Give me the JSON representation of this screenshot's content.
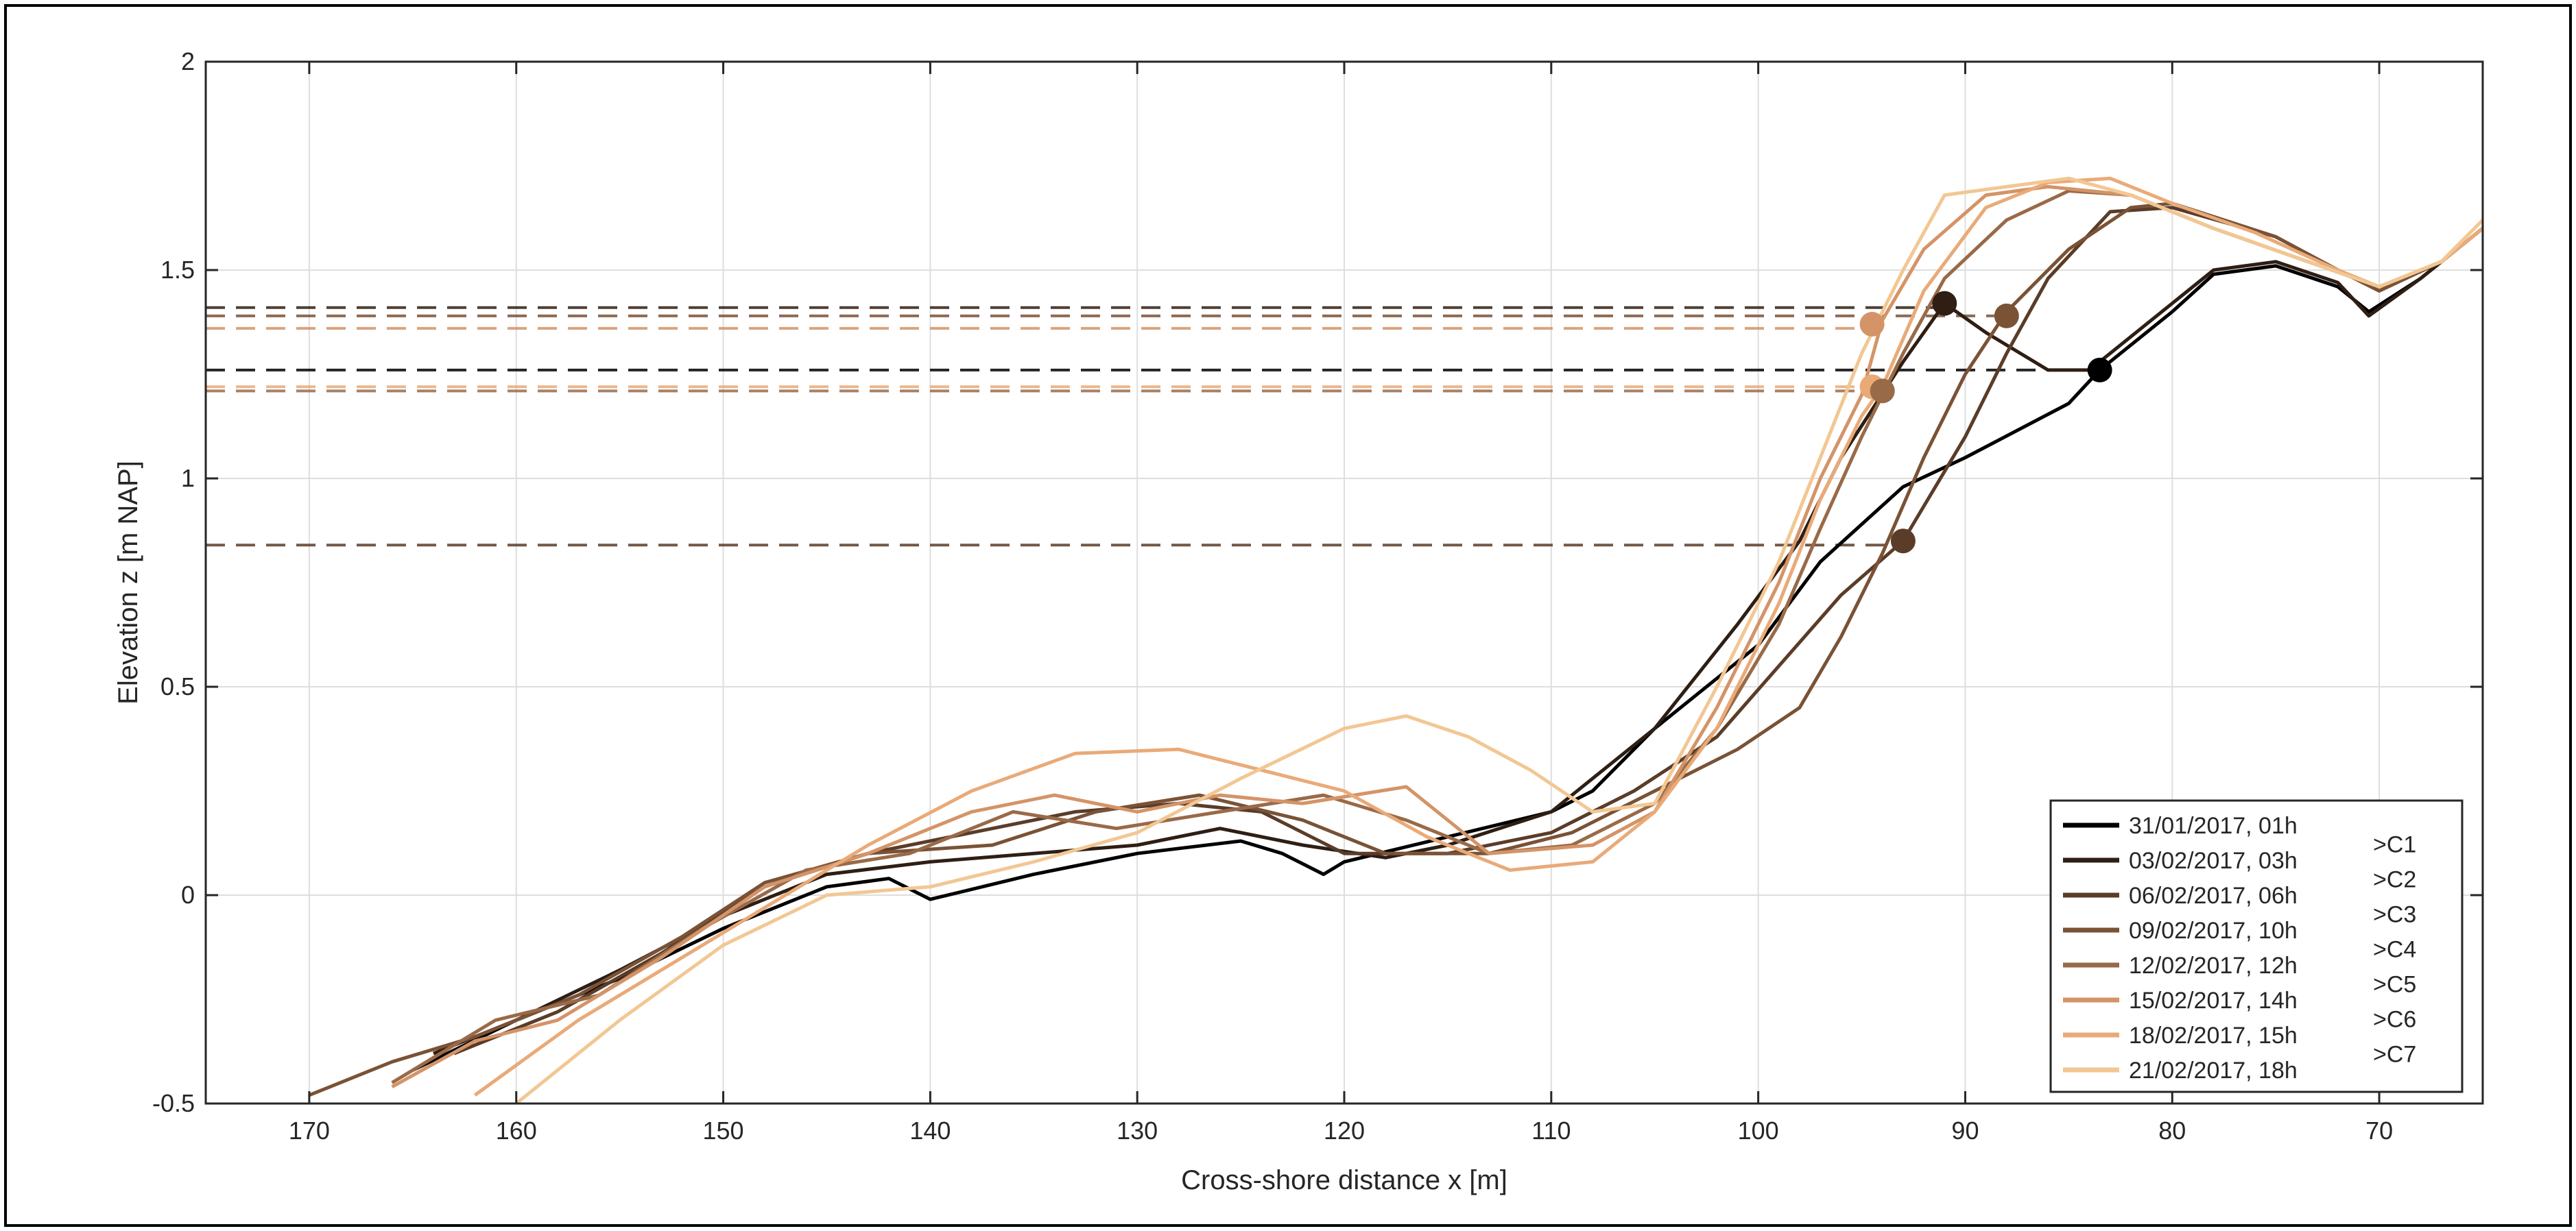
{
  "chart_data": {
    "type": "line",
    "title": "",
    "xlabel": "Cross-shore distance x [m]",
    "ylabel": "Elevation z [m NAP]",
    "xlim": [
      175,
      65
    ],
    "ylim": [
      -0.5,
      2
    ],
    "x_reversed": true,
    "grid": true,
    "legend_position": "bottom-right",
    "x_ticks": [
      170,
      160,
      150,
      140,
      130,
      120,
      110,
      100,
      90,
      80,
      70
    ],
    "y_ticks": [
      -0.5,
      0,
      0.5,
      1,
      1.5,
      2
    ],
    "y_tick_labels": [
      "-0.5",
      "0",
      "0.5",
      "1",
      "1.5",
      "2"
    ],
    "series": [
      {
        "name": "31/01/2017, 01h",
        "color": "#000000",
        "points": [
          [
            165,
            -0.42
          ],
          [
            160,
            -0.3
          ],
          [
            155,
            -0.2
          ],
          [
            150,
            -0.08
          ],
          [
            145,
            0.02
          ],
          [
            142,
            0.04
          ],
          [
            140,
            -0.01
          ],
          [
            135,
            0.05
          ],
          [
            130,
            0.1
          ],
          [
            125,
            0.13
          ],
          [
            123,
            0.1
          ],
          [
            121,
            0.05
          ],
          [
            120,
            0.08
          ],
          [
            115,
            0.14
          ],
          [
            110,
            0.2
          ],
          [
            108,
            0.25
          ],
          [
            105,
            0.4
          ],
          [
            100,
            0.6
          ],
          [
            97,
            0.8
          ],
          [
            93,
            0.98
          ],
          [
            90,
            1.05
          ],
          [
            85,
            1.18
          ],
          [
            83.5,
            1.26
          ],
          [
            80,
            1.4
          ],
          [
            78,
            1.49
          ],
          [
            75,
            1.51
          ],
          [
            72,
            1.46
          ],
          [
            70.5,
            1.4
          ],
          [
            68,
            1.48
          ],
          [
            65,
            1.6
          ]
        ]
      },
      {
        "name": "03/02/2017, 03h",
        "color": "#2e1e14",
        "points": [
          [
            164,
            -0.38
          ],
          [
            160,
            -0.3
          ],
          [
            155,
            -0.18
          ],
          [
            150,
            -0.05
          ],
          [
            145,
            0.05
          ],
          [
            140,
            0.08
          ],
          [
            135,
            0.1
          ],
          [
            130,
            0.12
          ],
          [
            126,
            0.16
          ],
          [
            122,
            0.12
          ],
          [
            118,
            0.09
          ],
          [
            115,
            0.12
          ],
          [
            110,
            0.2
          ],
          [
            105,
            0.4
          ],
          [
            101,
            0.65
          ],
          [
            98,
            0.85
          ],
          [
            96,
            1.05
          ],
          [
            93,
            1.28
          ],
          [
            91,
            1.42
          ],
          [
            89,
            1.35
          ],
          [
            86,
            1.26
          ],
          [
            84,
            1.26
          ],
          [
            80,
            1.42
          ],
          [
            78,
            1.5
          ],
          [
            75,
            1.52
          ],
          [
            72,
            1.47
          ],
          [
            70.5,
            1.39
          ],
          [
            68,
            1.48
          ],
          [
            65,
            1.6
          ]
        ]
      },
      {
        "name": "06/02/2017, 06h",
        "color": "#5a3c28",
        "points": [
          [
            163,
            -0.38
          ],
          [
            158,
            -0.28
          ],
          [
            153,
            -0.14
          ],
          [
            148,
            0.02
          ],
          [
            143,
            0.1
          ],
          [
            138,
            0.15
          ],
          [
            133,
            0.2
          ],
          [
            128,
            0.22
          ],
          [
            124,
            0.2
          ],
          [
            120,
            0.1
          ],
          [
            115,
            0.1
          ],
          [
            110,
            0.15
          ],
          [
            106,
            0.25
          ],
          [
            102,
            0.38
          ],
          [
            99,
            0.55
          ],
          [
            96,
            0.72
          ],
          [
            93,
            0.85
          ],
          [
            90,
            1.1
          ],
          [
            88,
            1.3
          ],
          [
            86,
            1.48
          ],
          [
            83,
            1.64
          ],
          [
            80,
            1.65
          ],
          [
            75,
            1.58
          ],
          [
            72,
            1.5
          ],
          [
            70,
            1.45
          ],
          [
            67,
            1.52
          ],
          [
            65,
            1.6
          ]
        ]
      },
      {
        "name": "09/02/2017, 10h",
        "color": "#7a5236",
        "points": [
          [
            170,
            -0.48
          ],
          [
            166,
            -0.4
          ],
          [
            162,
            -0.34
          ],
          [
            157,
            -0.24
          ],
          [
            152,
            -0.1
          ],
          [
            148,
            0.03
          ],
          [
            143,
            0.1
          ],
          [
            137,
            0.12
          ],
          [
            132,
            0.2
          ],
          [
            127,
            0.24
          ],
          [
            122,
            0.18
          ],
          [
            118,
            0.1
          ],
          [
            113,
            0.1
          ],
          [
            109,
            0.15
          ],
          [
            105,
            0.25
          ],
          [
            101,
            0.35
          ],
          [
            98,
            0.45
          ],
          [
            96,
            0.62
          ],
          [
            94,
            0.82
          ],
          [
            92,
            1.05
          ],
          [
            90,
            1.25
          ],
          [
            88,
            1.4
          ],
          [
            85,
            1.55
          ],
          [
            82,
            1.65
          ],
          [
            80,
            1.66
          ],
          [
            75,
            1.58
          ],
          [
            72,
            1.5
          ],
          [
            70,
            1.45
          ],
          [
            67,
            1.52
          ],
          [
            65,
            1.6
          ]
        ]
      },
      {
        "name": "12/02/2017, 12h",
        "color": "#996a48",
        "points": [
          [
            166,
            -0.45
          ],
          [
            161,
            -0.3
          ],
          [
            156,
            -0.24
          ],
          [
            151,
            -0.08
          ],
          [
            146,
            0.06
          ],
          [
            141,
            0.1
          ],
          [
            136,
            0.2
          ],
          [
            131,
            0.16
          ],
          [
            126,
            0.2
          ],
          [
            121,
            0.24
          ],
          [
            117,
            0.18
          ],
          [
            113,
            0.1
          ],
          [
            109,
            0.12
          ],
          [
            105,
            0.22
          ],
          [
            102,
            0.4
          ],
          [
            99,
            0.65
          ],
          [
            97,
            0.88
          ],
          [
            95,
            1.1
          ],
          [
            93,
            1.3
          ],
          [
            91,
            1.48
          ],
          [
            88,
            1.62
          ],
          [
            85,
            1.69
          ],
          [
            82,
            1.68
          ],
          [
            78,
            1.6
          ],
          [
            74,
            1.53
          ],
          [
            70,
            1.46
          ],
          [
            67,
            1.52
          ],
          [
            65,
            1.6
          ]
        ]
      },
      {
        "name": "15/02/2017, 14h",
        "color": "#d49468",
        "points": [
          [
            166,
            -0.46
          ],
          [
            162,
            -0.35
          ],
          [
            158,
            -0.3
          ],
          [
            153,
            -0.15
          ],
          [
            148,
            0.02
          ],
          [
            143,
            0.1
          ],
          [
            138,
            0.2
          ],
          [
            134,
            0.24
          ],
          [
            130,
            0.2
          ],
          [
            126,
            0.24
          ],
          [
            122,
            0.22
          ],
          [
            117,
            0.26
          ],
          [
            113,
            0.1
          ],
          [
            108,
            0.12
          ],
          [
            105,
            0.2
          ],
          [
            102,
            0.45
          ],
          [
            99,
            0.75
          ],
          [
            97,
            1.0
          ],
          [
            95,
            1.2
          ],
          [
            94,
            1.38
          ],
          [
            92,
            1.55
          ],
          [
            89,
            1.68
          ],
          [
            86,
            1.7
          ],
          [
            82,
            1.68
          ],
          [
            78,
            1.6
          ],
          [
            74,
            1.53
          ],
          [
            70,
            1.46
          ],
          [
            67,
            1.52
          ],
          [
            65,
            1.6
          ]
        ]
      },
      {
        "name": "18/02/2017, 15h",
        "color": "#e9aa78",
        "points": [
          [
            162,
            -0.48
          ],
          [
            157,
            -0.3
          ],
          [
            152,
            -0.15
          ],
          [
            147,
            0.0
          ],
          [
            143,
            0.12
          ],
          [
            138,
            0.25
          ],
          [
            133,
            0.34
          ],
          [
            128,
            0.35
          ],
          [
            124,
            0.3
          ],
          [
            120,
            0.25
          ],
          [
            116,
            0.14
          ],
          [
            112,
            0.06
          ],
          [
            108,
            0.08
          ],
          [
            105,
            0.2
          ],
          [
            102,
            0.4
          ],
          [
            99,
            0.7
          ],
          [
            97,
            0.95
          ],
          [
            95,
            1.15
          ],
          [
            94,
            1.22
          ],
          [
            92,
            1.45
          ],
          [
            89,
            1.65
          ],
          [
            86,
            1.71
          ],
          [
            83,
            1.72
          ],
          [
            80,
            1.66
          ],
          [
            76,
            1.59
          ],
          [
            72,
            1.5
          ],
          [
            70,
            1.46
          ],
          [
            67,
            1.52
          ],
          [
            65,
            1.6
          ]
        ]
      },
      {
        "name": "21/02/2017, 18h",
        "color": "#f2c793",
        "points": [
          [
            160,
            -0.5
          ],
          [
            155,
            -0.3
          ],
          [
            150,
            -0.12
          ],
          [
            145,
            0.0
          ],
          [
            140,
            0.02
          ],
          [
            135,
            0.08
          ],
          [
            130,
            0.15
          ],
          [
            125,
            0.28
          ],
          [
            120,
            0.4
          ],
          [
            117,
            0.43
          ],
          [
            114,
            0.38
          ],
          [
            111,
            0.3
          ],
          [
            108,
            0.2
          ],
          [
            105,
            0.22
          ],
          [
            102,
            0.5
          ],
          [
            99,
            0.8
          ],
          [
            97,
            1.05
          ],
          [
            95,
            1.3
          ],
          [
            93,
            1.5
          ],
          [
            91,
            1.68
          ],
          [
            88,
            1.7
          ],
          [
            85,
            1.72
          ],
          [
            82,
            1.68
          ],
          [
            78,
            1.6
          ],
          [
            74,
            1.53
          ],
          [
            70,
            1.46
          ],
          [
            67,
            1.52
          ],
          [
            65,
            1.62
          ]
        ]
      }
    ],
    "reference_lines": [
      {
        "y": 1.41,
        "x_to": 91,
        "color": "#2e1e14"
      },
      {
        "y": 1.39,
        "x_to": 88,
        "color": "#7a5236"
      },
      {
        "y": 1.36,
        "x_to": 94.5,
        "color": "#d49468"
      },
      {
        "y": 1.26,
        "x_to": 83.5,
        "color": "#000000"
      },
      {
        "y": 1.22,
        "x_to": 94.5,
        "color": "#e9aa78"
      },
      {
        "y": 1.21,
        "x_to": 94,
        "color": "#996a48"
      },
      {
        "y": 0.84,
        "x_to": 93,
        "color": "#5a3c28"
      }
    ],
    "markers": [
      {
        "x": 91,
        "y": 1.42,
        "color": "#2e1e14"
      },
      {
        "x": 88,
        "y": 1.39,
        "color": "#7a5236"
      },
      {
        "x": 94.5,
        "y": 1.37,
        "color": "#d49468"
      },
      {
        "x": 83.5,
        "y": 1.26,
        "color": "#000000"
      },
      {
        "x": 94.5,
        "y": 1.22,
        "color": "#e9aa78"
      },
      {
        "x": 94,
        "y": 1.21,
        "color": "#996a48"
      },
      {
        "x": 93,
        "y": 0.85,
        "color": "#5a3c28"
      }
    ],
    "legend_change_labels": [
      ">C1",
      ">C2",
      ">C3",
      ">C4",
      ">C5",
      ">C6",
      ">C7"
    ]
  }
}
